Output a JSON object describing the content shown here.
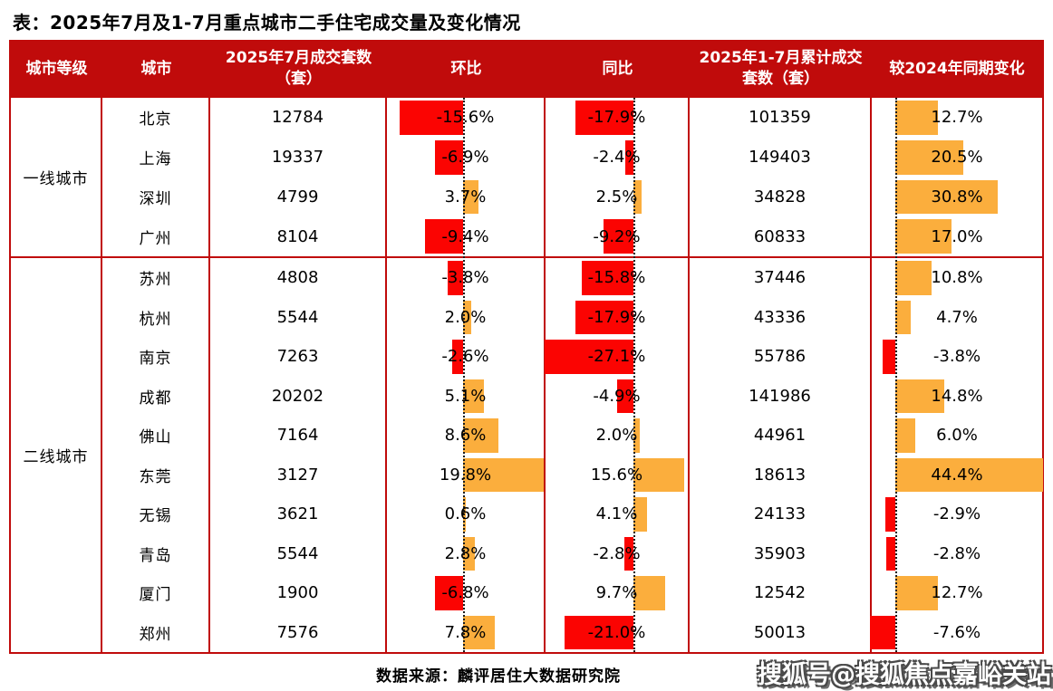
{
  "title": "表：2025年7月及1-7月重点城市二手住宅成交量及变化情况",
  "colors": {
    "header_red": "#c00b0b",
    "border_red": "#c00b0b",
    "bar_red": "#fb0402",
    "bar_orange": "#fbae3d"
  },
  "table": {
    "headers": [
      "城市等级",
      "城市",
      "2025年7月成交套数（套）",
      "环比",
      "同比",
      "2025年1-7月累计成交套数（套）",
      "较2024年同期变化"
    ],
    "groups": [
      {
        "tier": "一线城市",
        "cities": [
          {
            "city": "北京",
            "jul": "12784",
            "mom": -15.6,
            "mom_label": "-15.6%",
            "yoy": -17.9,
            "yoy_label": "-17.9%",
            "cum": "101359",
            "chg": 12.7,
            "chg_label": "12.7%"
          },
          {
            "city": "上海",
            "jul": "19337",
            "mom": -6.9,
            "mom_label": "-6.9%",
            "yoy": -2.4,
            "yoy_label": "-2.4%",
            "cum": "149403",
            "chg": 20.5,
            "chg_label": "20.5%"
          },
          {
            "city": "深圳",
            "jul": "4799",
            "mom": 3.7,
            "mom_label": "3.7%",
            "yoy": 2.5,
            "yoy_label": "2.5%",
            "cum": "34828",
            "chg": 30.8,
            "chg_label": "30.8%"
          },
          {
            "city": "广州",
            "jul": "8104",
            "mom": -9.4,
            "mom_label": "-9.4%",
            "yoy": -9.2,
            "yoy_label": "-9.2%",
            "cum": "60833",
            "chg": 17.0,
            "chg_label": "17.0%"
          }
        ]
      },
      {
        "tier": "二线城市",
        "cities": [
          {
            "city": "苏州",
            "jul": "4808",
            "mom": -3.8,
            "mom_label": "-3.8%",
            "yoy": -15.8,
            "yoy_label": "-15.8%",
            "cum": "37446",
            "chg": 10.8,
            "chg_label": "10.8%"
          },
          {
            "city": "杭州",
            "jul": "5544",
            "mom": 2.0,
            "mom_label": "2.0%",
            "yoy": -17.9,
            "yoy_label": "-17.9%",
            "cum": "43336",
            "chg": 4.7,
            "chg_label": "4.7%"
          },
          {
            "city": "南京",
            "jul": "7263",
            "mom": -2.6,
            "mom_label": "-2.6%",
            "yoy": -27.1,
            "yoy_label": "-27.1%",
            "cum": "55786",
            "chg": -3.8,
            "chg_label": "-3.8%"
          },
          {
            "city": "成都",
            "jul": "20202",
            "mom": 5.1,
            "mom_label": "5.1%",
            "yoy": -4.9,
            "yoy_label": "-4.9%",
            "cum": "141986",
            "chg": 14.8,
            "chg_label": "14.8%"
          },
          {
            "city": "佛山",
            "jul": "7164",
            "mom": 8.6,
            "mom_label": "8.6%",
            "yoy": 2.0,
            "yoy_label": "2.0%",
            "cum": "44961",
            "chg": 6.0,
            "chg_label": "6.0%"
          },
          {
            "city": "东莞",
            "jul": "3127",
            "mom": 19.8,
            "mom_label": "19.8%",
            "yoy": 15.6,
            "yoy_label": "15.6%",
            "cum": "18613",
            "chg": 44.4,
            "chg_label": "44.4%"
          },
          {
            "city": "无锡",
            "jul": "3621",
            "mom": 0.6,
            "mom_label": "0.6%",
            "yoy": 4.1,
            "yoy_label": "4.1%",
            "cum": "24133",
            "chg": -2.9,
            "chg_label": "-2.9%"
          },
          {
            "city": "青岛",
            "jul": "5544",
            "mom": 2.8,
            "mom_label": "2.8%",
            "yoy": -2.8,
            "yoy_label": "-2.8%",
            "cum": "35903",
            "chg": -2.8,
            "chg_label": "-2.8%"
          },
          {
            "city": "厦门",
            "jul": "1900",
            "mom": -6.8,
            "mom_label": "-6.8%",
            "yoy": 9.7,
            "yoy_label": "9.7%",
            "cum": "12542",
            "chg": 12.7,
            "chg_label": "12.7%"
          },
          {
            "city": "郑州",
            "jul": "7576",
            "mom": 7.8,
            "mom_label": "7.8%",
            "yoy": -21.0,
            "yoy_label": "-21.0%",
            "cum": "50013",
            "chg": -7.6,
            "chg_label": "-7.6%"
          }
        ]
      }
    ]
  },
  "footer": {
    "source": "数据来源：麟评居住大数据研究院",
    "watermark": "搜狐号@搜狐焦点嘉峪关站"
  },
  "chart_data": {
    "type": "table",
    "title": "表：2025年7月及1-7月重点城市二手住宅成交量及变化情况",
    "columns": [
      "城市等级",
      "城市",
      "2025年7月成交套数（套）",
      "环比",
      "同比",
      "2025年1-7月累计成交套数（套）",
      "较2024年同期变化"
    ],
    "bar_style_note": "环比/同比/较2024年同期变化三列为嵌入条形图：负值红色条向虚线轴左侧延伸，正值橙色条向右侧延伸",
    "rows": [
      [
        "一线城市",
        "北京",
        12784,
        -15.6,
        -17.9,
        101359,
        12.7
      ],
      [
        "一线城市",
        "上海",
        19337,
        -6.9,
        -2.4,
        149403,
        20.5
      ],
      [
        "一线城市",
        "深圳",
        4799,
        3.7,
        2.5,
        34828,
        30.8
      ],
      [
        "一线城市",
        "广州",
        8104,
        -9.4,
        -9.2,
        60833,
        17.0
      ],
      [
        "二线城市",
        "苏州",
        4808,
        -3.8,
        -15.8,
        37446,
        10.8
      ],
      [
        "二线城市",
        "杭州",
        5544,
        2.0,
        -17.9,
        43336,
        4.7
      ],
      [
        "二线城市",
        "南京",
        7263,
        -2.6,
        -27.1,
        55786,
        -3.8
      ],
      [
        "二线城市",
        "成都",
        20202,
        5.1,
        -4.9,
        141986,
        14.8
      ],
      [
        "二线城市",
        "佛山",
        7164,
        8.6,
        2.0,
        44961,
        6.0
      ],
      [
        "二线城市",
        "东莞",
        3127,
        19.8,
        15.6,
        18613,
        44.4
      ],
      [
        "二线城市",
        "无锡",
        3621,
        0.6,
        4.1,
        24133,
        -2.9
      ],
      [
        "二线城市",
        "青岛",
        5544,
        2.8,
        -2.8,
        35903,
        -2.8
      ],
      [
        "二线城市",
        "厦门",
        1900,
        -6.8,
        9.7,
        12542,
        12.7
      ],
      [
        "二线城市",
        "郑州",
        7576,
        7.8,
        -21.0,
        50013,
        -7.6
      ]
    ]
  }
}
